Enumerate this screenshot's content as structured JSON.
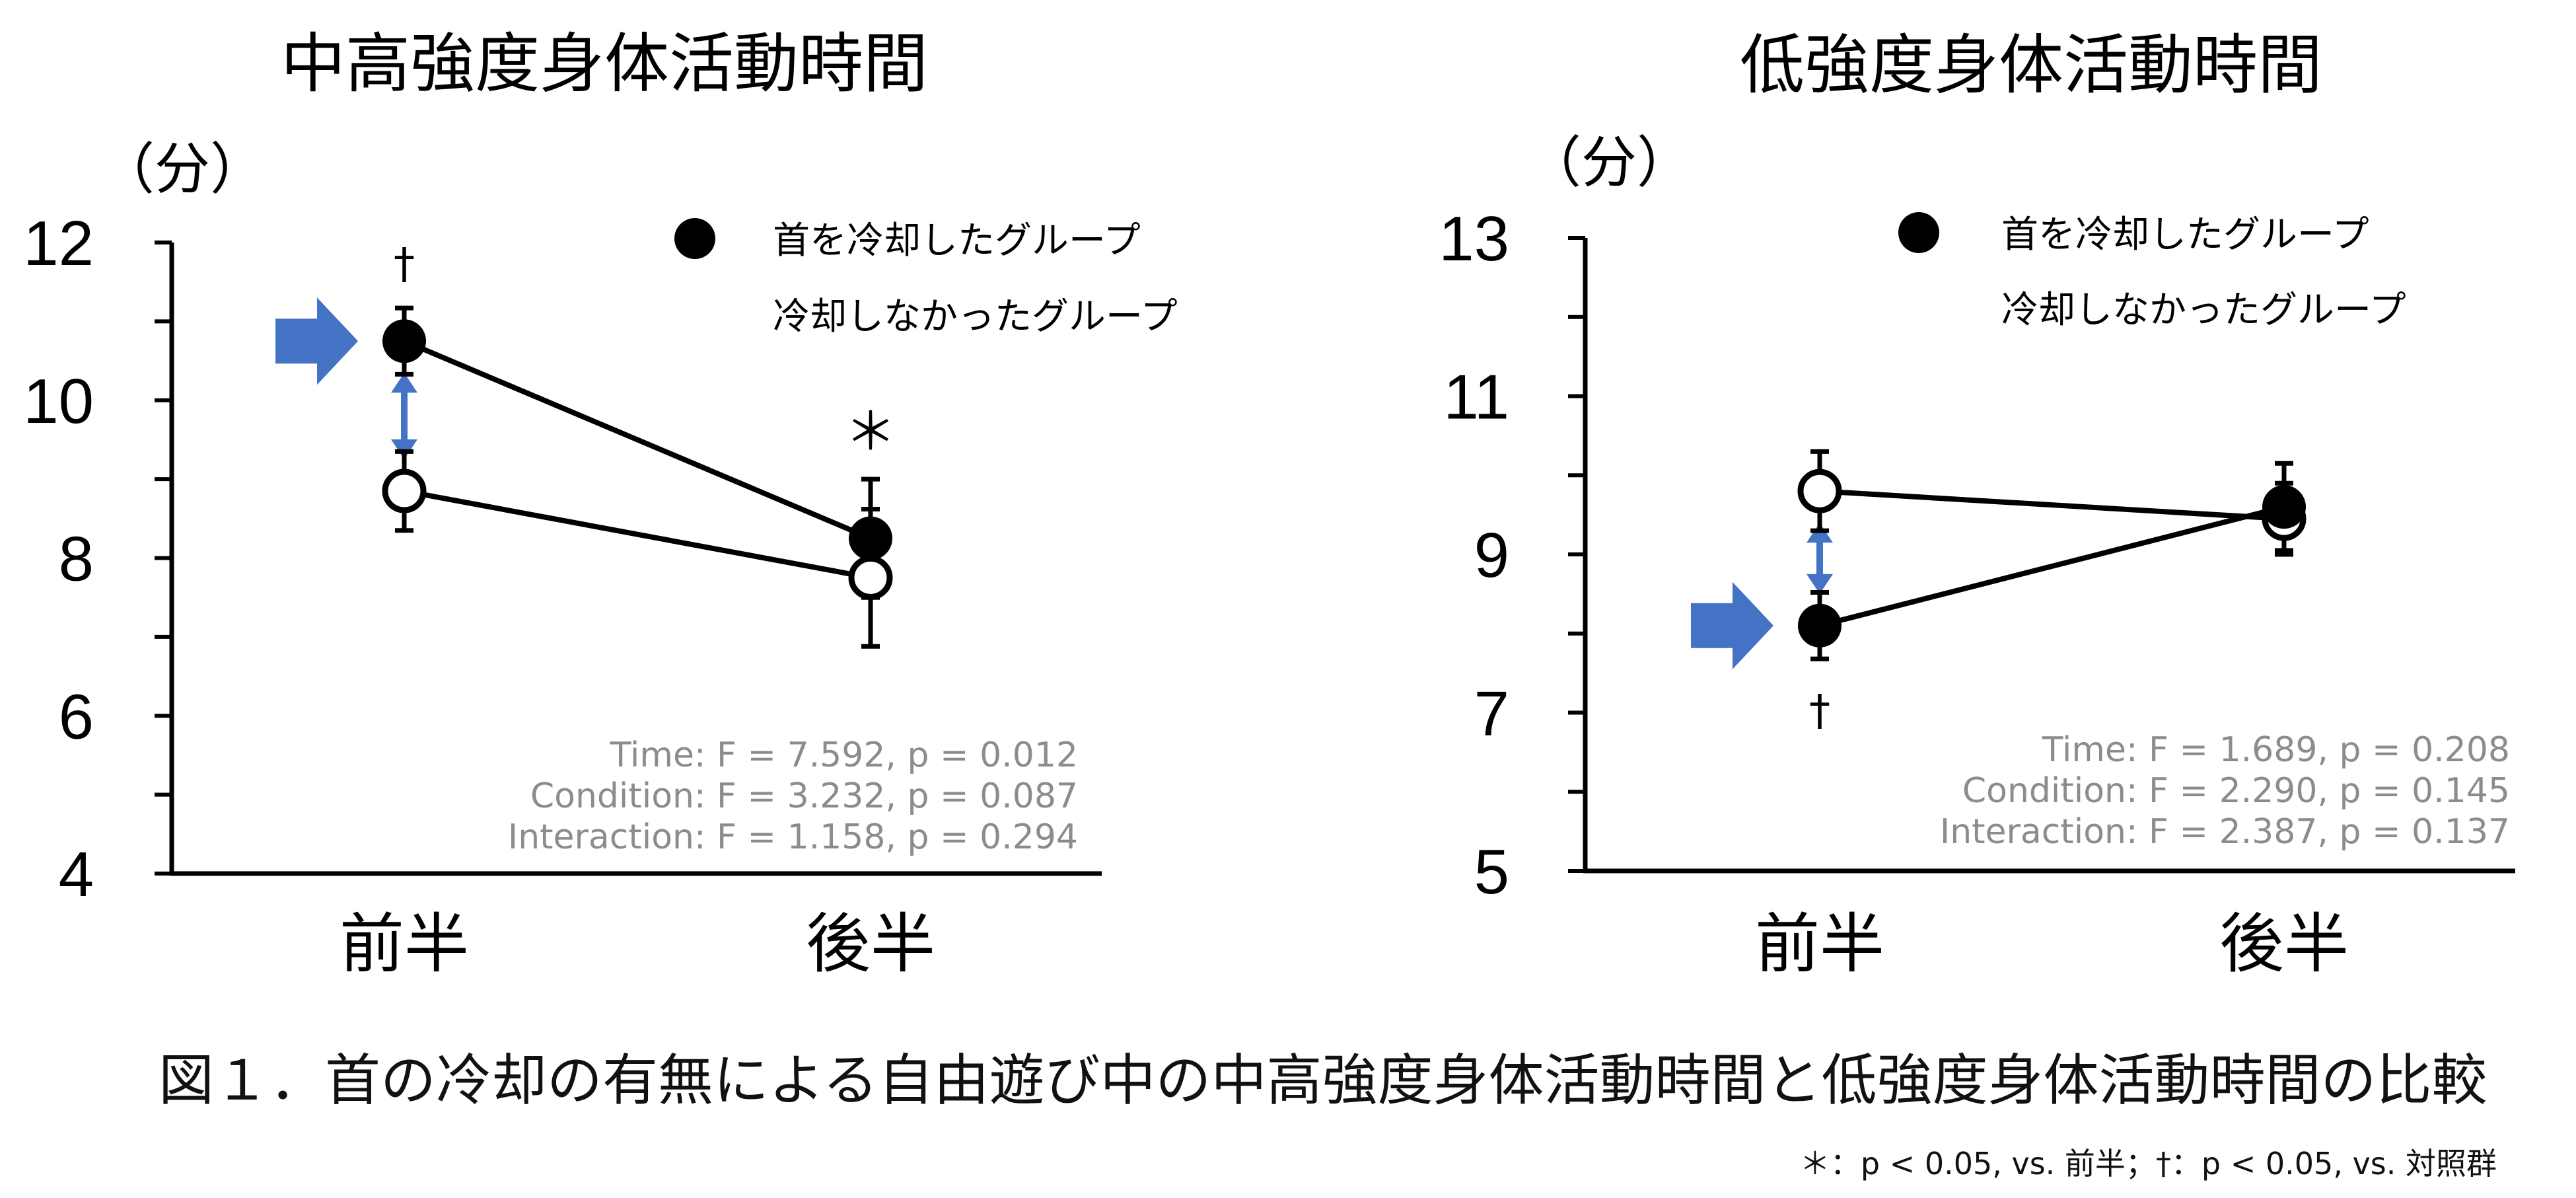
{
  "caption": "図１．首の冷却の有無による自由遊び中の中高強度身体活動時間と低強度身体活動時間の比較",
  "footnote": "＊：p < 0.05, vs. 前半；†：p < 0.05, vs. 対照群",
  "colors": {
    "line": "#000000",
    "arrow": "#4472C4",
    "stats": "#8C8C8C"
  },
  "chart_data": [
    {
      "type": "line",
      "title": "中高強度身体活動時間",
      "ylabel": "（分）",
      "xlabel": "",
      "categories": [
        "前半",
        "後半"
      ],
      "ylim": [
        4,
        12
      ],
      "yticks": [
        4,
        6,
        8,
        10,
        12
      ],
      "yminor": 1,
      "legend_position": "top-right",
      "series": [
        {
          "name": "首を冷却したグループ",
          "marker": "filled",
          "values": [
            10.75,
            8.25
          ],
          "err": [
            0.42,
            0.75
          ]
        },
        {
          "name": "冷却しなかったグループ",
          "marker": "open",
          "values": [
            8.85,
            7.75
          ],
          "err": [
            0.5,
            0.87
          ]
        }
      ],
      "annotations": [
        {
          "text": "†",
          "category": 0,
          "series": 0,
          "place": "above"
        },
        {
          "text": "＊",
          "category": 1,
          "series": 0,
          "place": "above"
        }
      ],
      "stats": [
        "Time: F = 7.592, p = 0.012",
        "Condition: F = 3.232, p = 0.087",
        "Interaction: F = 1.158, p = 0.294"
      ],
      "highlight": {
        "category": 0,
        "series": 0
      }
    },
    {
      "type": "line",
      "title": "低強度身体活動時間",
      "ylabel": "（分）",
      "xlabel": "",
      "categories": [
        "前半",
        "後半"
      ],
      "ylim": [
        5,
        13
      ],
      "yticks": [
        5,
        7,
        9,
        11,
        13
      ],
      "yminor": 1,
      "legend_position": "top-right",
      "series": [
        {
          "name": "首を冷却したグループ",
          "marker": "filled",
          "values": [
            8.1,
            9.6
          ],
          "err": [
            0.42,
            0.55
          ]
        },
        {
          "name": "冷却しなかったグループ",
          "marker": "open",
          "values": [
            9.8,
            9.45
          ],
          "err": [
            0.5,
            0.45
          ]
        }
      ],
      "annotations": [
        {
          "text": "†",
          "category": 0,
          "series": 0,
          "place": "below"
        }
      ],
      "stats": [
        "Time: F = 1.689, p = 0.208",
        "Condition: F = 2.290, p = 0.145",
        "Interaction: F = 2.387, p = 0.137"
      ],
      "highlight": {
        "category": 0,
        "series": 0
      }
    }
  ]
}
